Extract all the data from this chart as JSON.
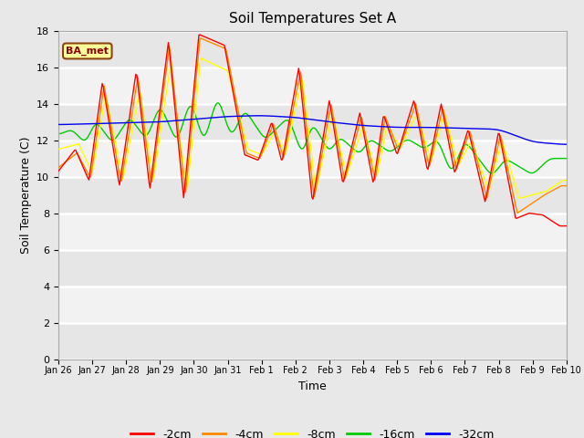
{
  "title": "Soil Temperatures Set A",
  "xlabel": "Time",
  "ylabel": "Soil Temperature (C)",
  "ylim": [
    0,
    18
  ],
  "yticks": [
    0,
    2,
    4,
    6,
    8,
    10,
    12,
    14,
    16,
    18
  ],
  "annotation_text": "BA_met",
  "colors": {
    "-2cm": "#FF0000",
    "-4cm": "#FF8800",
    "-8cm": "#FFFF00",
    "-16cm": "#00CC00",
    "-32cm": "#0000EE"
  },
  "legend_labels": [
    "-2cm",
    "-4cm",
    "-8cm",
    "-16cm",
    "-32cm"
  ],
  "x_tick_labels": [
    "Jan 26",
    "Jan 27",
    "Jan 28",
    "Jan 29",
    "Jan 30",
    "Jan 31",
    "Feb 1",
    "Feb 2",
    "Feb 3",
    "Feb 4",
    "Feb 5",
    "Feb 6",
    "Feb 7",
    "Feb 8",
    "Feb 9",
    "Feb 10"
  ],
  "background_color": "#E8E8E8",
  "plot_bg_color": "#F2F2F2",
  "annotation_bg": "#FFFF99",
  "annotation_border": "#8B4513",
  "days": 15
}
